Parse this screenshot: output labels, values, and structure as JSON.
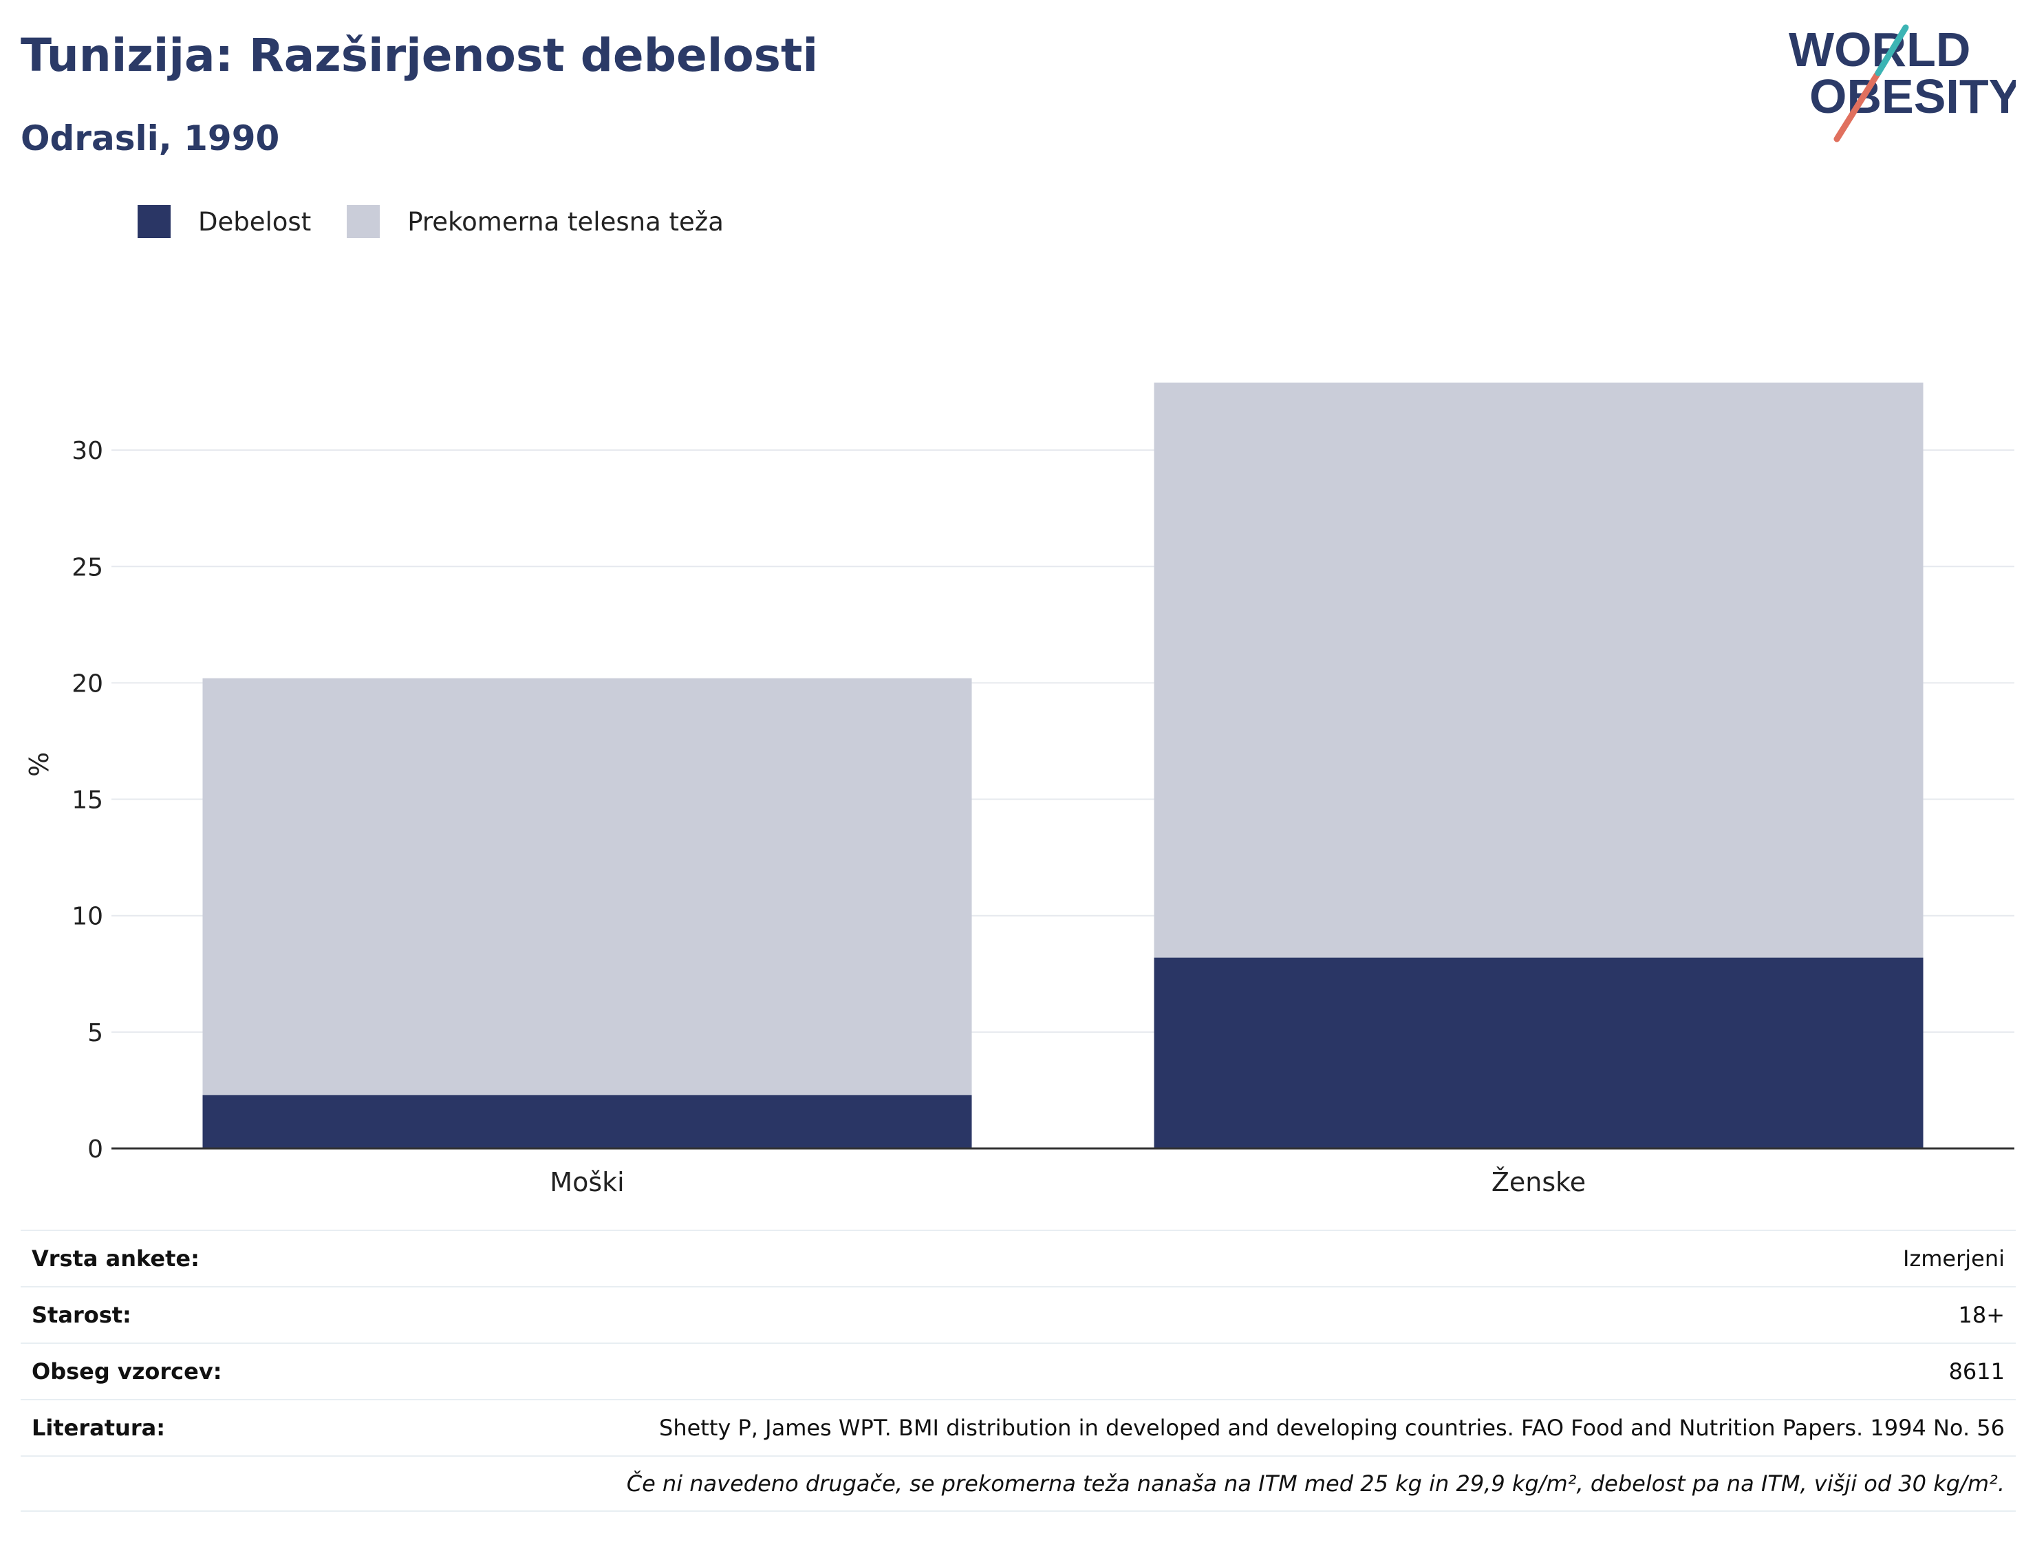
{
  "header": {
    "title": "Tunizija: Razširjenost debelosti",
    "subtitle": "Odrasli, 1990"
  },
  "logo": {
    "line1": "WORLD",
    "line2": "OBESITY"
  },
  "legend": {
    "items": [
      {
        "label": "Debelost",
        "color": "#2a3665"
      },
      {
        "label": "Prekomerna telesna teža",
        "color": "#cacdd9"
      }
    ]
  },
  "chart_data": {
    "type": "bar",
    "stacked": true,
    "categories": [
      "Moški",
      "Ženske"
    ],
    "series": [
      {
        "name": "Debelost",
        "color": "#2a3665",
        "values": [
          2.3,
          8.2
        ]
      },
      {
        "name": "Prekomerna telesna teža",
        "color": "#cacdd9",
        "values": [
          17.9,
          24.7
        ]
      }
    ],
    "ylabel": "%",
    "yticks": [
      0,
      5,
      10,
      15,
      20,
      25,
      30
    ],
    "ylim": [
      0,
      33
    ],
    "grid": true,
    "legend_position": "top-left"
  },
  "info_table": {
    "rows": [
      {
        "key": "Vrsta ankete:",
        "value": "Izmerjeni"
      },
      {
        "key": "Starost:",
        "value": "18+"
      },
      {
        "key": "Obseg vzorcev:",
        "value": "8611"
      },
      {
        "key": "Literatura:",
        "value": "Shetty P, James WPT. BMI distribution in developed and developing countries. FAO Food and Nutrition Papers. 1994 No. 56"
      }
    ],
    "note": "Če ni navedeno drugače, se prekomerna teža nanaša na ITM med 25 kg in 29,9 kg/m², debelost pa na ITM, višji od 30 kg/m²."
  }
}
